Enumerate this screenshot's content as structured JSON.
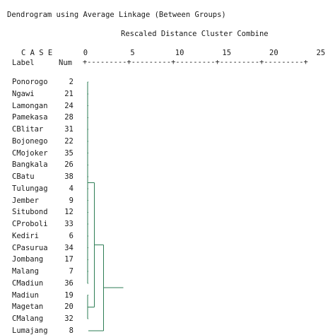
{
  "title": "Dendrogram using Average Linkage (Between Groups)",
  "scale_title": "Rescaled Distance Cluster Combine",
  "header": {
    "case": "C A S E",
    "label": "Label",
    "num": "Num",
    "ruler": "+---------+---------+---------+---------+---------+"
  },
  "line_color": "#2e7d55",
  "chart_data": {
    "type": "dendrogram",
    "linkage": "Average Linkage (Between Groups)",
    "x_axis": {
      "label": "Rescaled Distance Cluster Combine",
      "ticks": [
        0,
        5,
        10,
        15,
        20,
        25
      ],
      "range": [
        0,
        25
      ]
    },
    "leaves": [
      {
        "label": "Ponorogo",
        "num": "2"
      },
      {
        "label": "Ngawi",
        "num": "21"
      },
      {
        "label": "Lamongan",
        "num": "24"
      },
      {
        "label": "Pamekasa",
        "num": "28"
      },
      {
        "label": "CBlitar",
        "num": "31"
      },
      {
        "label": "Bojonego",
        "num": "22"
      },
      {
        "label": "CMojoker",
        "num": "35"
      },
      {
        "label": "Bangkala",
        "num": "26"
      },
      {
        "label": "CBatu",
        "num": "38"
      },
      {
        "label": "Tulungag",
        "num": "4"
      },
      {
        "label": "Jember",
        "num": "9"
      },
      {
        "label": "Situbond",
        "num": "12"
      },
      {
        "label": "CProboli",
        "num": "33"
      },
      {
        "label": "Kediri",
        "num": "6"
      },
      {
        "label": "CPasurua",
        "num": "34"
      },
      {
        "label": "Jombang",
        "num": "17"
      },
      {
        "label": "Malang",
        "num": "7"
      },
      {
        "label": "CMadiun",
        "num": "36"
      },
      {
        "label": "Madiun",
        "num": "19"
      },
      {
        "label": "Magetan",
        "num": "20"
      },
      {
        "label": "CMalang",
        "num": "32"
      },
      {
        "label": "Lumajang",
        "num": "8"
      }
    ],
    "clusters": [
      {
        "leaves_from": 0,
        "leaves_to": 17,
        "distance": 0.3
      },
      {
        "leaves_from": 18,
        "leaves_to": 20,
        "distance": 0.3
      },
      {
        "leaves_from": 0,
        "leaves_to": 20,
        "distance": 1.0
      },
      {
        "leaves_from": 0,
        "leaves_to": 21,
        "distance": 2.0
      }
    ]
  }
}
